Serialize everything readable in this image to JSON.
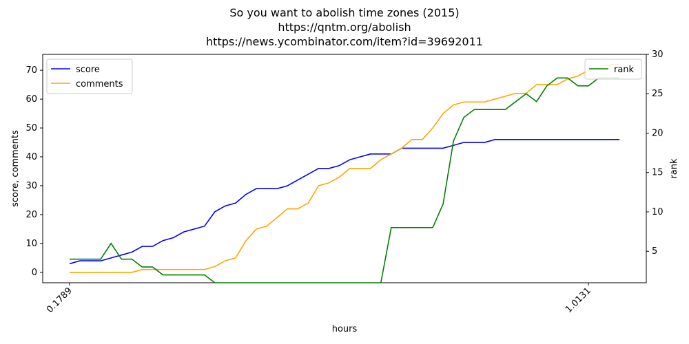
{
  "chart_data": {
    "type": "line",
    "title": [
      "So you want to abolish time zones (2015)",
      "https://qntm.org/abolish",
      "https://news.ycombinator.com/item?id=39692011"
    ],
    "xlabel": "hours",
    "ylabel": "score, comments",
    "y2label": "rank",
    "x": [
      0.1789,
      0.1956,
      0.2123,
      0.2289,
      0.2456,
      0.2623,
      0.279,
      0.2957,
      0.3124,
      0.329,
      0.3457,
      0.3624,
      0.3791,
      0.3958,
      0.4125,
      0.4292,
      0.4458,
      0.4625,
      0.4792,
      0.4959,
      0.5126,
      0.5293,
      0.5459,
      0.5626,
      0.5793,
      0.596,
      0.6127,
      0.6294,
      0.646,
      0.6627,
      0.6794,
      0.6961,
      0.7128,
      0.7295,
      0.7462,
      0.7628,
      0.7795,
      0.7962,
      0.8129,
      0.8296,
      0.8463,
      0.8629,
      0.8796,
      0.8963,
      0.913,
      0.9297,
      0.9464,
      0.963,
      0.9797,
      0.9964,
      1.0131,
      1.0298,
      1.0465,
      1.0632
    ],
    "xlim": [
      0.1357,
      1.1062
    ],
    "xticks": [
      0.1789,
      1.0131
    ],
    "ylim": [
      -3.6,
      75.5
    ],
    "yticks": [
      0,
      10,
      20,
      30,
      40,
      50,
      60,
      70
    ],
    "y2lim": [
      1,
      30
    ],
    "y2ticks": [
      5,
      10,
      15,
      20,
      25,
      30
    ],
    "legend": "upper left",
    "legend2": "upper right",
    "series": [
      {
        "name": "score",
        "color": "#0000ff",
        "values": [
          3,
          4,
          4,
          4,
          5,
          6,
          7,
          9,
          9,
          11,
          12,
          14,
          15,
          16,
          21,
          23,
          24,
          27,
          29,
          29,
          29,
          30,
          32,
          34,
          36,
          36,
          37,
          39,
          40,
          41,
          41,
          41,
          43,
          43,
          43,
          43,
          43,
          44,
          45,
          45,
          45,
          46,
          46,
          46,
          46,
          46,
          46,
          46,
          46,
          46,
          46,
          46,
          46,
          46
        ]
      },
      {
        "name": "comments",
        "color": "#ffa500",
        "values": [
          0,
          0,
          0,
          0,
          0,
          0,
          0,
          1,
          1,
          1,
          1,
          1,
          1,
          1,
          2,
          4,
          5,
          11,
          15,
          16,
          19,
          22,
          22,
          24,
          30,
          31,
          33,
          36,
          36,
          36,
          39,
          41,
          43,
          46,
          46,
          50,
          55,
          58,
          59,
          59,
          59,
          60,
          61,
          62,
          62,
          65,
          65,
          65,
          67,
          68,
          70,
          71,
          72,
          72
        ]
      },
      {
        "name": "rank",
        "color": "#008000",
        "axis": "y2",
        "values": [
          4,
          4,
          4,
          4,
          6,
          4,
          4,
          3,
          3,
          2,
          2,
          2,
          2,
          2,
          1,
          1,
          1,
          1,
          1,
          1,
          1,
          1,
          1,
          1,
          1,
          1,
          1,
          1,
          1,
          1,
          1,
          8,
          8,
          8,
          8,
          8,
          11,
          19,
          22,
          23,
          23,
          23,
          23,
          24,
          25,
          24,
          26,
          27,
          27,
          26,
          26,
          27,
          27,
          27
        ]
      }
    ]
  }
}
